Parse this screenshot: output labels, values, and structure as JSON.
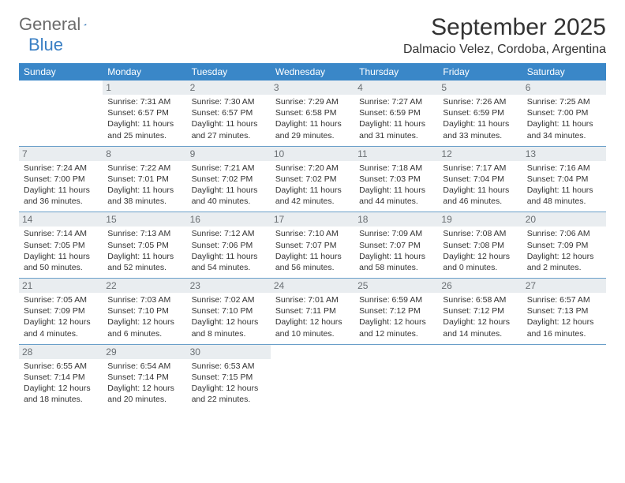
{
  "brand": {
    "part1": "General",
    "part2": "Blue"
  },
  "title": {
    "month": "September 2025",
    "location": "Dalmacio Velez, Cordoba, Argentina"
  },
  "colors": {
    "header_bg": "#3a87c8",
    "header_text": "#ffffff",
    "daynum_bg": "#e9edf0",
    "daynum_text": "#6a6f73",
    "row_border": "#6a9fc9",
    "body_text": "#333333",
    "logo_gray": "#6b6b6b",
    "logo_blue": "#3a7fc4"
  },
  "typography": {
    "month_fontsize": 30,
    "location_fontsize": 16,
    "dayhead_fontsize": 12,
    "cell_fontsize": 10.5
  },
  "dayHeaders": [
    "Sunday",
    "Monday",
    "Tuesday",
    "Wednesday",
    "Thursday",
    "Friday",
    "Saturday"
  ],
  "weeks": [
    [
      null,
      {
        "n": "1",
        "sr": "Sunrise: 7:31 AM",
        "ss": "Sunset: 6:57 PM",
        "dl": "Daylight: 11 hours and 25 minutes."
      },
      {
        "n": "2",
        "sr": "Sunrise: 7:30 AM",
        "ss": "Sunset: 6:57 PM",
        "dl": "Daylight: 11 hours and 27 minutes."
      },
      {
        "n": "3",
        "sr": "Sunrise: 7:29 AM",
        "ss": "Sunset: 6:58 PM",
        "dl": "Daylight: 11 hours and 29 minutes."
      },
      {
        "n": "4",
        "sr": "Sunrise: 7:27 AM",
        "ss": "Sunset: 6:59 PM",
        "dl": "Daylight: 11 hours and 31 minutes."
      },
      {
        "n": "5",
        "sr": "Sunrise: 7:26 AM",
        "ss": "Sunset: 6:59 PM",
        "dl": "Daylight: 11 hours and 33 minutes."
      },
      {
        "n": "6",
        "sr": "Sunrise: 7:25 AM",
        "ss": "Sunset: 7:00 PM",
        "dl": "Daylight: 11 hours and 34 minutes."
      }
    ],
    [
      {
        "n": "7",
        "sr": "Sunrise: 7:24 AM",
        "ss": "Sunset: 7:00 PM",
        "dl": "Daylight: 11 hours and 36 minutes."
      },
      {
        "n": "8",
        "sr": "Sunrise: 7:22 AM",
        "ss": "Sunset: 7:01 PM",
        "dl": "Daylight: 11 hours and 38 minutes."
      },
      {
        "n": "9",
        "sr": "Sunrise: 7:21 AM",
        "ss": "Sunset: 7:02 PM",
        "dl": "Daylight: 11 hours and 40 minutes."
      },
      {
        "n": "10",
        "sr": "Sunrise: 7:20 AM",
        "ss": "Sunset: 7:02 PM",
        "dl": "Daylight: 11 hours and 42 minutes."
      },
      {
        "n": "11",
        "sr": "Sunrise: 7:18 AM",
        "ss": "Sunset: 7:03 PM",
        "dl": "Daylight: 11 hours and 44 minutes."
      },
      {
        "n": "12",
        "sr": "Sunrise: 7:17 AM",
        "ss": "Sunset: 7:04 PM",
        "dl": "Daylight: 11 hours and 46 minutes."
      },
      {
        "n": "13",
        "sr": "Sunrise: 7:16 AM",
        "ss": "Sunset: 7:04 PM",
        "dl": "Daylight: 11 hours and 48 minutes."
      }
    ],
    [
      {
        "n": "14",
        "sr": "Sunrise: 7:14 AM",
        "ss": "Sunset: 7:05 PM",
        "dl": "Daylight: 11 hours and 50 minutes."
      },
      {
        "n": "15",
        "sr": "Sunrise: 7:13 AM",
        "ss": "Sunset: 7:05 PM",
        "dl": "Daylight: 11 hours and 52 minutes."
      },
      {
        "n": "16",
        "sr": "Sunrise: 7:12 AM",
        "ss": "Sunset: 7:06 PM",
        "dl": "Daylight: 11 hours and 54 minutes."
      },
      {
        "n": "17",
        "sr": "Sunrise: 7:10 AM",
        "ss": "Sunset: 7:07 PM",
        "dl": "Daylight: 11 hours and 56 minutes."
      },
      {
        "n": "18",
        "sr": "Sunrise: 7:09 AM",
        "ss": "Sunset: 7:07 PM",
        "dl": "Daylight: 11 hours and 58 minutes."
      },
      {
        "n": "19",
        "sr": "Sunrise: 7:08 AM",
        "ss": "Sunset: 7:08 PM",
        "dl": "Daylight: 12 hours and 0 minutes."
      },
      {
        "n": "20",
        "sr": "Sunrise: 7:06 AM",
        "ss": "Sunset: 7:09 PM",
        "dl": "Daylight: 12 hours and 2 minutes."
      }
    ],
    [
      {
        "n": "21",
        "sr": "Sunrise: 7:05 AM",
        "ss": "Sunset: 7:09 PM",
        "dl": "Daylight: 12 hours and 4 minutes."
      },
      {
        "n": "22",
        "sr": "Sunrise: 7:03 AM",
        "ss": "Sunset: 7:10 PM",
        "dl": "Daylight: 12 hours and 6 minutes."
      },
      {
        "n": "23",
        "sr": "Sunrise: 7:02 AM",
        "ss": "Sunset: 7:10 PM",
        "dl": "Daylight: 12 hours and 8 minutes."
      },
      {
        "n": "24",
        "sr": "Sunrise: 7:01 AM",
        "ss": "Sunset: 7:11 PM",
        "dl": "Daylight: 12 hours and 10 minutes."
      },
      {
        "n": "25",
        "sr": "Sunrise: 6:59 AM",
        "ss": "Sunset: 7:12 PM",
        "dl": "Daylight: 12 hours and 12 minutes."
      },
      {
        "n": "26",
        "sr": "Sunrise: 6:58 AM",
        "ss": "Sunset: 7:12 PM",
        "dl": "Daylight: 12 hours and 14 minutes."
      },
      {
        "n": "27",
        "sr": "Sunrise: 6:57 AM",
        "ss": "Sunset: 7:13 PM",
        "dl": "Daylight: 12 hours and 16 minutes."
      }
    ],
    [
      {
        "n": "28",
        "sr": "Sunrise: 6:55 AM",
        "ss": "Sunset: 7:14 PM",
        "dl": "Daylight: 12 hours and 18 minutes."
      },
      {
        "n": "29",
        "sr": "Sunrise: 6:54 AM",
        "ss": "Sunset: 7:14 PM",
        "dl": "Daylight: 12 hours and 20 minutes."
      },
      {
        "n": "30",
        "sr": "Sunrise: 6:53 AM",
        "ss": "Sunset: 7:15 PM",
        "dl": "Daylight: 12 hours and 22 minutes."
      },
      null,
      null,
      null,
      null
    ]
  ]
}
